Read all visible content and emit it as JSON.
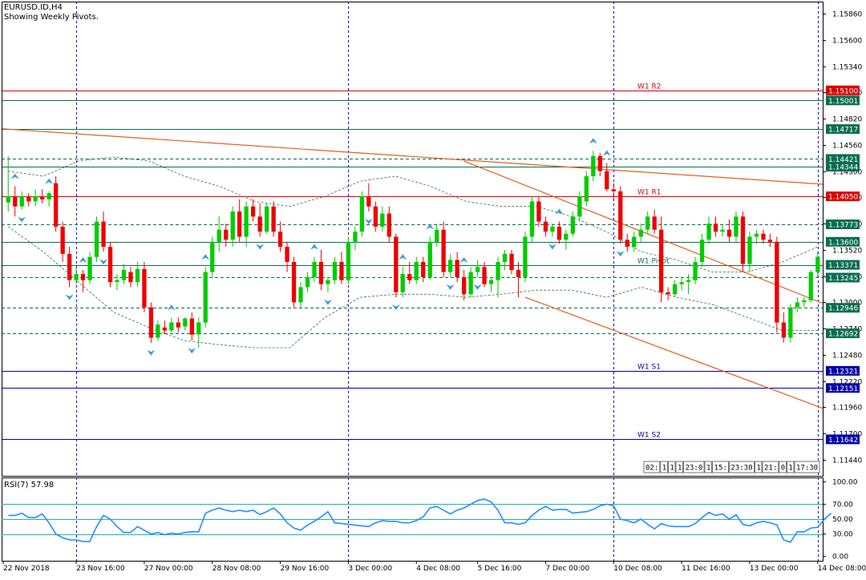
{
  "header": {
    "symbol": "EURUSD.ID,H4",
    "note": "Showing Weekly Pivots."
  },
  "colors": {
    "background": "#ffffff",
    "frame": "#000000",
    "bull": "#00cc00",
    "bear": "#ee0000",
    "grid_vertical": "#0000cc",
    "pivot_line": "#0a6e50",
    "pivot_resistance": "#dd0000",
    "pivot_support": "#0000aa",
    "trend": "#e06020",
    "envelope": "#3c7050",
    "fractal": "#3a9ad8",
    "rsi_line": "#1e90ff",
    "rsi_level": "#20b2aa"
  },
  "icons": {
    "fractal_up": "fractal-up-arrow-icon",
    "fractal_down": "fractal-down-arrow-icon"
  },
  "session_box": [
    "02:",
    "1",
    "1",
    "1",
    "23:0",
    "1",
    "15:",
    "23:30",
    "1",
    "21:",
    "0",
    "1",
    "17:30"
  ],
  "chart_data": {
    "type": "candlestick",
    "price_axis": {
      "ylim": [
        1.1128,
        1.1598
      ],
      "ticks": [
        "1.15860",
        "1.15600",
        "1.15340",
        "1.15080",
        "1.14820",
        "1.14560",
        "1.14300",
        "1.14040",
        "1.13780",
        "1.13520",
        "1.13260",
        "1.13000",
        "1.12740",
        "1.12480",
        "1.12220",
        "1.11960",
        "1.11700",
        "1.11440"
      ]
    },
    "time_axis": {
      "labels": [
        "22 Nov 2018",
        "23 Nov 16:00",
        "27 Nov 00:00",
        "28 Nov 08:00",
        "29 Nov 16:00",
        "3 Dec 00:00",
        "4 Dec 08:00",
        "5 Dec 16:00",
        "7 Dec 00:00",
        "10 Dec 08:00",
        "11 Dec 16:00",
        "13 Dec 00:00",
        "14 Dec 08:00"
      ],
      "grid_label_index": [
        1,
        5,
        9,
        12
      ]
    },
    "levels": [
      {
        "value": 1.151,
        "label": "1.15100",
        "name": "W1 R2",
        "role": "resistance",
        "style": "solid"
      },
      {
        "value": 1.15001,
        "label": "1.15001",
        "name": "",
        "role": "pivot",
        "style": "solid"
      },
      {
        "value": 1.14717,
        "label": "1.14717",
        "name": "",
        "role": "pivot",
        "style": "solid"
      },
      {
        "value": 1.14421,
        "label": "1.14421",
        "name": "",
        "role": "pivot",
        "style": "dashed"
      },
      {
        "value": 1.14344,
        "label": "1.14344",
        "name": "",
        "role": "pivot",
        "style": "solid"
      },
      {
        "value": 1.1405,
        "label": "1.14050",
        "name": "W1 R1",
        "role": "resistance",
        "style": "solid"
      },
      {
        "value": 1.13773,
        "label": "1.13773",
        "name": "",
        "role": "pivot",
        "style": "dashed"
      },
      {
        "value": 1.136,
        "label": "1.13600",
        "name": "",
        "role": "pivot",
        "style": "solid"
      },
      {
        "value": 1.13371,
        "label": "1.13371",
        "name": "W1 Pivot",
        "role": "pivot",
        "style": "solid"
      },
      {
        "value": 1.13245,
        "label": "1.13245",
        "name": "",
        "role": "pivot",
        "style": "dashed"
      },
      {
        "value": 1.12946,
        "label": "1.12946",
        "name": "",
        "role": "pivot",
        "style": "dashed"
      },
      {
        "value": 1.12692,
        "label": "1.12692",
        "name": "",
        "role": "pivot",
        "style": "dashed"
      },
      {
        "value": 1.12321,
        "label": "1.12321",
        "name": "W1 S1",
        "role": "support",
        "style": "solid"
      },
      {
        "value": 1.12151,
        "label": "1.12151",
        "name": "",
        "role": "support",
        "style": "solid"
      },
      {
        "value": 1.11642,
        "label": "1.11642",
        "name": "W1 S2",
        "role": "support",
        "style": "solid"
      }
    ],
    "candles": [
      [
        1.1399,
        1.1445,
        1.139,
        1.1405
      ],
      [
        1.1405,
        1.1415,
        1.1385,
        1.1395
      ],
      [
        1.1395,
        1.141,
        1.1392,
        1.1405
      ],
      [
        1.1405,
        1.1408,
        1.1395,
        1.14
      ],
      [
        1.14,
        1.1412,
        1.1395,
        1.1405
      ],
      [
        1.1405,
        1.1412,
        1.1398,
        1.1402
      ],
      [
        1.1402,
        1.141,
        1.1395,
        1.1408
      ],
      [
        1.1418,
        1.1425,
        1.137,
        1.1375
      ],
      [
        1.1375,
        1.138,
        1.134,
        1.1348
      ],
      [
        1.1348,
        1.1355,
        1.1315,
        1.1322
      ],
      [
        1.1322,
        1.1335,
        1.1318,
        1.1328
      ],
      [
        1.1328,
        1.1332,
        1.131,
        1.1322
      ],
      [
        1.1322,
        1.135,
        1.1318,
        1.1345
      ],
      [
        1.1345,
        1.1385,
        1.134,
        1.138
      ],
      [
        1.138,
        1.139,
        1.135,
        1.1355
      ],
      [
        1.1355,
        1.136,
        1.1315,
        1.132
      ],
      [
        1.132,
        1.1328,
        1.1312,
        1.1322
      ],
      [
        1.1322,
        1.1338,
        1.1318,
        1.1332
      ],
      [
        1.133,
        1.1335,
        1.1315,
        1.132
      ],
      [
        1.132,
        1.134,
        1.1315,
        1.1333
      ],
      [
        1.1333,
        1.134,
        1.129,
        1.1295
      ],
      [
        1.1295,
        1.13,
        1.126,
        1.1265
      ],
      [
        1.1265,
        1.1282,
        1.1262,
        1.1278
      ],
      [
        1.1275,
        1.1282,
        1.1268,
        1.1272
      ],
      [
        1.1272,
        1.1285,
        1.127,
        1.128
      ],
      [
        1.128,
        1.1285,
        1.127,
        1.1275
      ],
      [
        1.1276,
        1.1285,
        1.1272,
        1.1284
      ],
      [
        1.1284,
        1.129,
        1.1262,
        1.1268
      ],
      [
        1.1268,
        1.1285,
        1.1255,
        1.128
      ],
      [
        1.128,
        1.1335,
        1.1275,
        1.133
      ],
      [
        1.133,
        1.1365,
        1.1325,
        1.136
      ],
      [
        1.136,
        1.1385,
        1.135,
        1.1372
      ],
      [
        1.1372,
        1.1378,
        1.1355,
        1.1362
      ],
      [
        1.1362,
        1.1395,
        1.1355,
        1.139
      ],
      [
        1.139,
        1.1402,
        1.136,
        1.1365
      ],
      [
        1.1365,
        1.14,
        1.1355,
        1.1395
      ],
      [
        1.1395,
        1.1402,
        1.138,
        1.1385
      ],
      [
        1.1385,
        1.1398,
        1.1365,
        1.137
      ],
      [
        1.137,
        1.1398,
        1.1368,
        1.1395
      ],
      [
        1.1395,
        1.14,
        1.1365,
        1.137
      ],
      [
        1.137,
        1.138,
        1.135,
        1.1355
      ],
      [
        1.1355,
        1.136,
        1.133,
        1.134
      ],
      [
        1.134,
        1.1345,
        1.1295,
        1.13
      ],
      [
        1.13,
        1.132,
        1.1295,
        1.1315
      ],
      [
        1.1315,
        1.133,
        1.131,
        1.1325
      ],
      [
        1.1325,
        1.1345,
        1.132,
        1.134
      ],
      [
        1.134,
        1.1352,
        1.1312,
        1.1318
      ],
      [
        1.1318,
        1.1325,
        1.131,
        1.1322
      ],
      [
        1.1322,
        1.1345,
        1.1318,
        1.134
      ],
      [
        1.134,
        1.135,
        1.1318,
        1.1322
      ],
      [
        1.1322,
        1.1365,
        1.1318,
        1.136
      ],
      [
        1.136,
        1.1375,
        1.1352,
        1.137
      ],
      [
        1.137,
        1.141,
        1.1365,
        1.1405
      ],
      [
        1.1405,
        1.1418,
        1.139,
        1.1395
      ],
      [
        1.1395,
        1.14,
        1.137,
        1.1375
      ],
      [
        1.1375,
        1.1395,
        1.137,
        1.1388
      ],
      [
        1.1388,
        1.1395,
        1.136,
        1.1365
      ],
      [
        1.1365,
        1.1368,
        1.1305,
        1.131
      ],
      [
        1.131,
        1.1335,
        1.1305,
        1.1328
      ],
      [
        1.1328,
        1.134,
        1.1318,
        1.1322
      ],
      [
        1.1322,
        1.1345,
        1.1318,
        1.134
      ],
      [
        1.134,
        1.1345,
        1.132,
        1.1325
      ],
      [
        1.1325,
        1.1365,
        1.1322,
        1.136
      ],
      [
        1.136,
        1.1378,
        1.1355,
        1.1372
      ],
      [
        1.1372,
        1.138,
        1.1325,
        1.133
      ],
      [
        1.133,
        1.1348,
        1.1325,
        1.1342
      ],
      [
        1.1342,
        1.135,
        1.132,
        1.1325
      ],
      [
        1.1325,
        1.1332,
        1.1302,
        1.1308
      ],
      [
        1.1308,
        1.1335,
        1.1305,
        1.133
      ],
      [
        1.133,
        1.1342,
        1.1325,
        1.1335
      ],
      [
        1.1335,
        1.134,
        1.1315,
        1.1318
      ],
      [
        1.1318,
        1.1325,
        1.131,
        1.1322
      ],
      [
        1.1322,
        1.1345,
        1.1305,
        1.134
      ],
      [
        1.134,
        1.1352,
        1.1332,
        1.1348
      ],
      [
        1.1348,
        1.1352,
        1.1328,
        1.1332
      ],
      [
        1.1332,
        1.134,
        1.1305,
        1.1325
      ],
      [
        1.1325,
        1.137,
        1.132,
        1.1365
      ],
      [
        1.1365,
        1.1405,
        1.136,
        1.14
      ],
      [
        1.14,
        1.1405,
        1.1375,
        1.138
      ],
      [
        1.138,
        1.1385,
        1.1365,
        1.137
      ],
      [
        1.137,
        1.1378,
        1.1365,
        1.1375
      ],
      [
        1.1375,
        1.138,
        1.1358,
        1.1362
      ],
      [
        1.1362,
        1.1372,
        1.1352,
        1.1368
      ],
      [
        1.1368,
        1.139,
        1.1365,
        1.1385
      ],
      [
        1.1385,
        1.141,
        1.138,
        1.1405
      ],
      [
        1.14,
        1.143,
        1.1395,
        1.1425
      ],
      [
        1.1425,
        1.145,
        1.142,
        1.1445
      ],
      [
        1.1445,
        1.1448,
        1.1425,
        1.143
      ],
      [
        1.143,
        1.1438,
        1.141,
        1.1412
      ],
      [
        1.1412,
        1.1418,
        1.1402,
        1.141
      ],
      [
        1.141,
        1.1415,
        1.1358,
        1.1362
      ],
      [
        1.1362,
        1.1368,
        1.135,
        1.1355
      ],
      [
        1.1355,
        1.137,
        1.135,
        1.1365
      ],
      [
        1.1365,
        1.1378,
        1.136,
        1.1372
      ],
      [
        1.1372,
        1.139,
        1.1368,
        1.1385
      ],
      [
        1.1385,
        1.1392,
        1.1368,
        1.1372
      ],
      [
        1.1372,
        1.1385,
        1.13,
        1.131
      ],
      [
        1.131,
        1.1315,
        1.1302,
        1.1308
      ],
      [
        1.1308,
        1.1322,
        1.1305,
        1.1318
      ],
      [
        1.1318,
        1.1325,
        1.1312,
        1.132
      ],
      [
        1.132,
        1.1328,
        1.1308,
        1.1322
      ],
      [
        1.1322,
        1.1345,
        1.1318,
        1.134
      ],
      [
        1.134,
        1.1368,
        1.1335,
        1.1362
      ],
      [
        1.1362,
        1.1385,
        1.1358,
        1.1378
      ],
      [
        1.1378,
        1.1385,
        1.1365,
        1.137
      ],
      [
        1.137,
        1.1378,
        1.1365,
        1.1372
      ],
      [
        1.1372,
        1.1382,
        1.136,
        1.1365
      ],
      [
        1.1365,
        1.139,
        1.136,
        1.1385
      ],
      [
        1.1385,
        1.139,
        1.133,
        1.1338
      ],
      [
        1.1338,
        1.137,
        1.133,
        1.1365
      ],
      [
        1.1365,
        1.1372,
        1.1358,
        1.1368
      ],
      [
        1.1368,
        1.1372,
        1.1358,
        1.1362
      ],
      [
        1.1362,
        1.1368,
        1.1355,
        1.136
      ],
      [
        1.136,
        1.1365,
        1.127,
        1.128
      ],
      [
        1.128,
        1.129,
        1.126,
        1.1265
      ],
      [
        1.1265,
        1.1298,
        1.126,
        1.1295
      ],
      [
        1.1295,
        1.1305,
        1.129,
        1.13
      ],
      [
        1.13,
        1.1305,
        1.1295,
        1.1302
      ],
      [
        1.1302,
        1.1332,
        1.13,
        1.133
      ],
      [
        1.133,
        1.135,
        1.1325,
        1.1345
      ]
    ],
    "trendlines": [
      {
        "from": [
          0,
          1.1472
        ],
        "to": [
          122,
          1.1417
        ]
      },
      {
        "from": [
          67,
          1.144
        ],
        "to": [
          122,
          1.1299
        ]
      },
      {
        "from": [
          76,
          1.1305
        ],
        "to": [
          122,
          1.1195
        ]
      }
    ],
    "envelope": {
      "upper": [
        1.143,
        1.1425,
        1.144,
        1.1444,
        1.144,
        1.1425,
        1.1415,
        1.14,
        1.1395,
        1.1405,
        1.142,
        1.1425,
        1.1415,
        1.14,
        1.1395,
        1.1395,
        1.1385,
        1.137,
        1.135,
        1.1342,
        1.133,
        1.133,
        1.134,
        1.1355
      ],
      "lower": [
        1.1375,
        1.135,
        1.132,
        1.129,
        1.1275,
        1.1262,
        1.1258,
        1.1255,
        1.1255,
        1.1285,
        1.1305,
        1.1308,
        1.1308,
        1.1305,
        1.1308,
        1.1312,
        1.1312,
        1.1305,
        1.1315,
        1.1305,
        1.1298,
        1.1285,
        1.1272,
        1.1272
      ]
    },
    "fractals": {
      "up": [
        1,
        6,
        11,
        24,
        29,
        45,
        58,
        62,
        67,
        81,
        86,
        88
      ],
      "down": [
        2,
        9,
        14,
        21,
        27,
        37,
        47,
        53,
        57,
        65,
        69,
        80,
        90
      ]
    }
  },
  "rsi": {
    "label": "RSI(7) 57.98",
    "ylim": [
      -6,
      106
    ],
    "ticks": [
      "100.00",
      "70.00",
      "50.00",
      "30.00",
      "0.00"
    ],
    "levels": [
      70,
      50,
      30
    ],
    "values": [
      55,
      55,
      58,
      52,
      52,
      57,
      45,
      30,
      25,
      22,
      22,
      20,
      20,
      40,
      55,
      50,
      40,
      32,
      32,
      40,
      35,
      30,
      32,
      29,
      31,
      30,
      32,
      33,
      33,
      58,
      62,
      65,
      62,
      60,
      62,
      60,
      62,
      56,
      60,
      65,
      57,
      45,
      38,
      35,
      42,
      47,
      53,
      60,
      45,
      44,
      43,
      42,
      41,
      40,
      45,
      48,
      47,
      47,
      45,
      45,
      48,
      53,
      65,
      67,
      62,
      57,
      62,
      65,
      70,
      75,
      77,
      73,
      62,
      45,
      45,
      43,
      45,
      55,
      62,
      67,
      62,
      63,
      63,
      58,
      59,
      60,
      63,
      68,
      70,
      68,
      50,
      48,
      45,
      50,
      43,
      37,
      44,
      41,
      40,
      40,
      40,
      44,
      52,
      59,
      55,
      57,
      50,
      56,
      43,
      41,
      45,
      47,
      45,
      42,
      22,
      19,
      33,
      33,
      38,
      39,
      50,
      58
    ]
  }
}
